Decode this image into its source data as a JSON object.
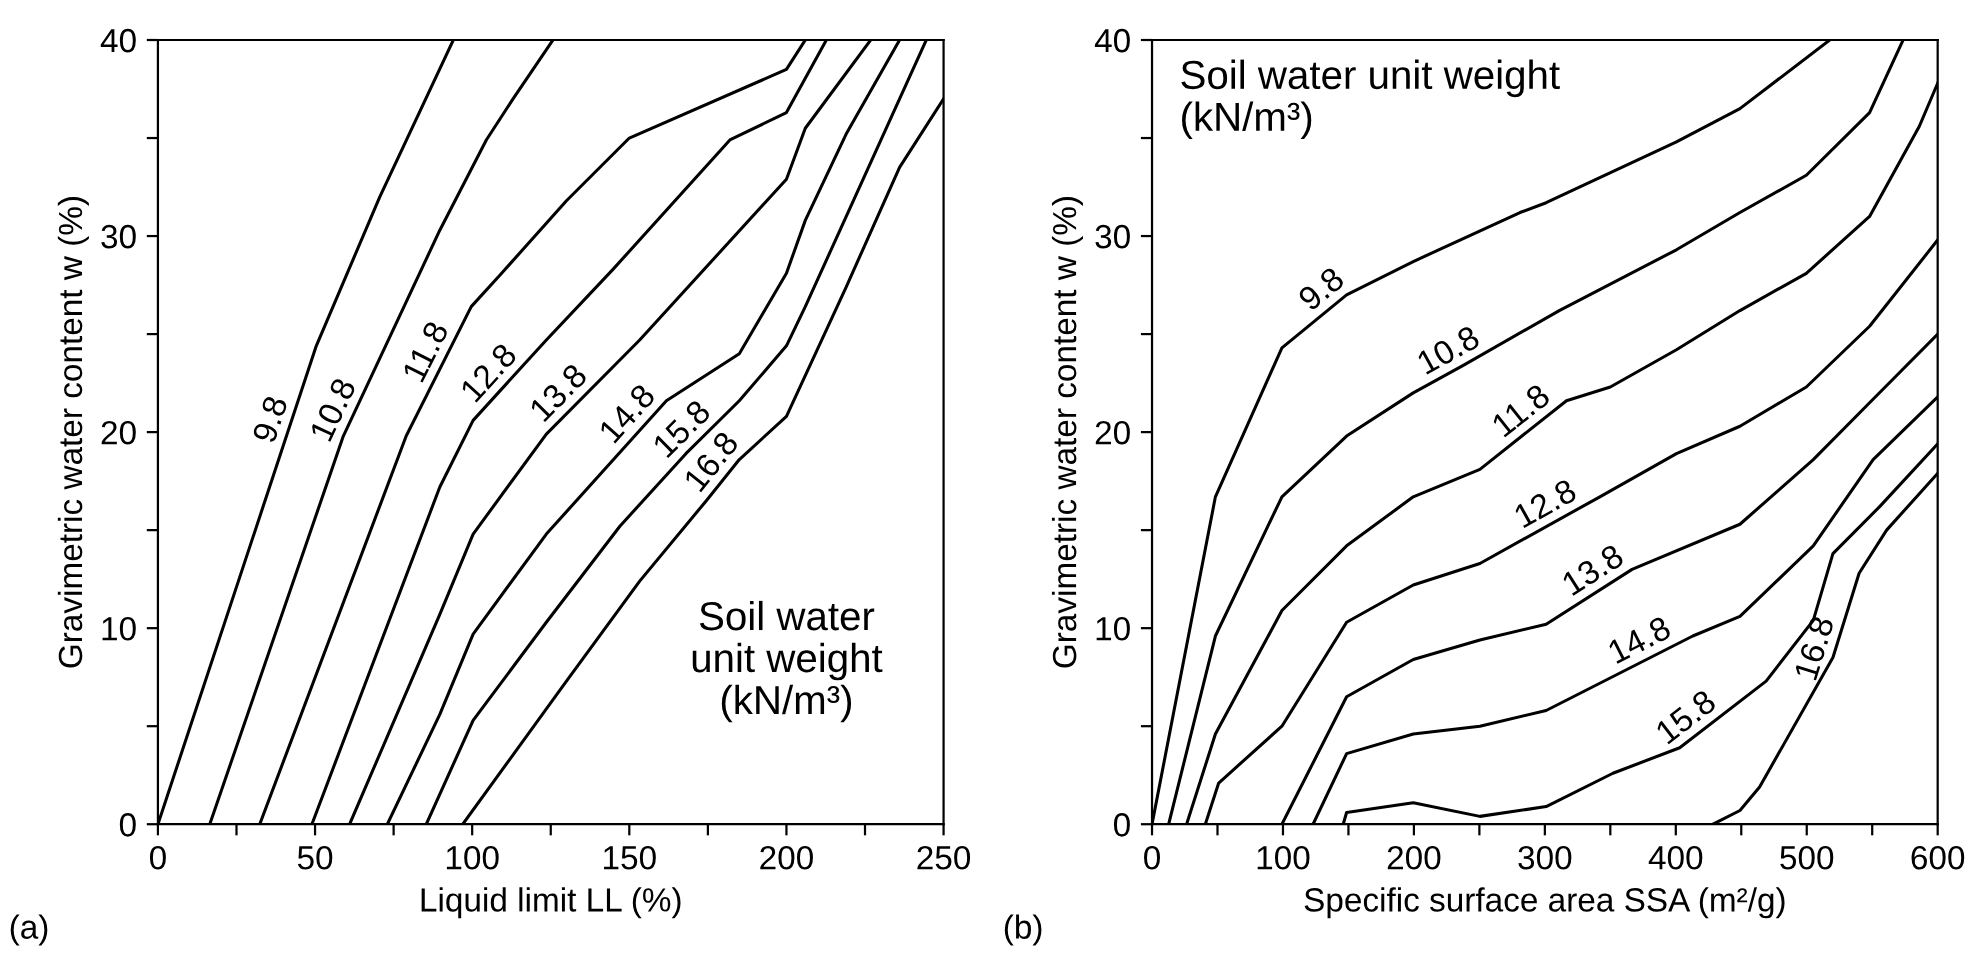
{
  "chart_data": [
    {
      "type": "line",
      "xlabel": "Liquid limit LL (%)",
      "ylabel": "Gravimetric water content w (%)",
      "xlim": [
        0,
        250
      ],
      "ylim": [
        0,
        40
      ],
      "xticks": [
        0,
        {
          "value": 25,
          "label": null
        },
        50,
        {
          "value": 75,
          "label": null
        },
        100,
        {
          "value": 125,
          "label": null
        },
        150,
        {
          "value": 175,
          "label": null
        },
        200,
        {
          "value": 225,
          "label": null
        },
        250
      ],
      "yticks": [
        0,
        {
          "value": 5,
          "label": null
        },
        10,
        {
          "value": 15,
          "label": null
        },
        20,
        {
          "value": 25,
          "label": null
        },
        30,
        {
          "value": 35,
          "label": null
        },
        40
      ],
      "grid": false,
      "legend": false,
      "annotations": [
        "(a)",
        "Soil water\nunit weight\n(kN/m³)"
      ],
      "series": [
        {
          "name": "9.8",
          "color": "#000000",
          "x": [
            0,
            50.4,
            70.6,
            94
          ],
          "values": [
            0,
            24.4,
            32,
            40
          ]
        },
        {
          "name": "10.8",
          "color": "#000000",
          "x": [
            16.5,
            59,
            89.7,
            104.5,
            113,
            125.7
          ],
          "values": [
            0,
            19.8,
            30.3,
            34.9,
            37,
            40
          ]
        },
        {
          "name": "11.8",
          "color": "#000000",
          "x": [
            32.4,
            79,
            99.7,
            108.8,
            130,
            150,
            200,
            206
          ],
          "values": [
            0,
            19.8,
            26.4,
            28,
            31.8,
            35,
            38.5,
            40
          ]
        },
        {
          "name": "12.8",
          "color": "#000000",
          "x": [
            49,
            89.7,
            100.3,
            123.6,
            144.8,
            182,
            200,
            212.7
          ],
          "values": [
            0,
            17.2,
            20.6,
            24.7,
            28.3,
            34.9,
            36.3,
            40
          ]
        },
        {
          "name": "13.8",
          "color": "#000000",
          "x": [
            61,
            89.7,
            100.3,
            123.6,
            153.3,
            200,
            206,
            226.8
          ],
          "values": [
            0,
            10.7,
            14.8,
            19.9,
            24.7,
            32.9,
            35.5,
            40
          ]
        },
        {
          "name": "14.8",
          "color": "#000000",
          "x": [
            73,
            89.7,
            100.3,
            123.6,
            161.8,
            185,
            200,
            206,
            219,
            236
          ],
          "values": [
            0,
            5.6,
            9.7,
            14.8,
            21.6,
            24,
            28.1,
            30.8,
            35.2,
            40
          ]
        },
        {
          "name": "15.8",
          "color": "#000000",
          "x": [
            85.4,
            100.3,
            123.6,
            147,
            168,
            185,
            200,
            206,
            244.5
          ],
          "values": [
            0,
            5.3,
            10.3,
            15.2,
            18.9,
            21.6,
            24.4,
            26.4,
            40
          ]
        },
        {
          "name": "16.8",
          "color": "#000000",
          "x": [
            97,
            130,
            153.3,
            174.5,
            185,
            200,
            219,
            236,
            250
          ],
          "values": [
            0,
            7.3,
            12.4,
            16.5,
            18.6,
            20.8,
            27.4,
            33.5,
            37
          ]
        }
      ]
    },
    {
      "type": "line",
      "xlabel": "Specific surface area SSA (m²/g)",
      "ylabel": "Gravimetric water content w (%)",
      "xlim": [
        0,
        600
      ],
      "ylim": [
        0,
        40
      ],
      "xticks": [
        0,
        {
          "value": 50,
          "label": null
        },
        100,
        {
          "value": 150,
          "label": null
        },
        200,
        {
          "value": 250,
          "label": null
        },
        300,
        {
          "value": 350,
          "label": null
        },
        400,
        {
          "value": 450,
          "label": null
        },
        500,
        {
          "value": 550,
          "label": null
        },
        600
      ],
      "yticks": [
        0,
        {
          "value": 5,
          "label": null
        },
        10,
        {
          "value": 15,
          "label": null
        },
        20,
        {
          "value": 25,
          "label": null
        },
        30,
        {
          "value": 35,
          "label": null
        },
        40
      ],
      "grid": false,
      "legend": false,
      "annotations": [
        "(b)",
        "Soil water unit weight\n(kN/m³)"
      ],
      "series": [
        {
          "name": "9.8",
          "color": "#000000",
          "x": [
            0,
            48.4,
            99.2,
            148.6,
            199.5,
            281,
            301,
            400.5,
            449,
            517.6
          ],
          "values": [
            0,
            16.7,
            24.3,
            27,
            28.7,
            31.2,
            31.7,
            34.8,
            36.5,
            40
          ]
        },
        {
          "name": "10.8",
          "color": "#000000",
          "x": [
            12.7,
            48.4,
            99.2,
            148.6,
            199.5,
            237.7,
            311,
            400.5,
            449,
            499.7,
            548,
            573.6
          ],
          "values": [
            0,
            9.6,
            16.7,
            19.8,
            22,
            23.4,
            26.2,
            29.3,
            31.2,
            33.1,
            36.3,
            40
          ]
        },
        {
          "name": "11.8",
          "color": "#000000",
          "x": [
            26.4,
            48.4,
            99.2,
            148.6,
            199.5,
            250.4,
            316.5,
            350,
            400.5,
            449,
            499.7,
            548,
            586,
            600
          ],
          "values": [
            0,
            4.6,
            10.9,
            14.2,
            16.7,
            18.1,
            21.6,
            22.3,
            24.2,
            26.2,
            28.1,
            31,
            35.6,
            37.8
          ]
        },
        {
          "name": "12.8",
          "color": "#000000",
          "x": [
            40.7,
            50.9,
            99.2,
            148.6,
            199.5,
            250.4,
            342,
            400.5,
            449,
            499.7,
            548,
            600
          ],
          "values": [
            0,
            2.1,
            5,
            10.3,
            12.2,
            13.3,
            16.7,
            18.9,
            20.3,
            22.3,
            25.4,
            29.8
          ]
        },
        {
          "name": "13.8",
          "color": "#000000",
          "x": [
            99.2,
            148.6,
            199.5,
            250.4,
            301,
            366.6,
            449,
            505,
            548,
            600
          ],
          "values": [
            0,
            6.5,
            8.4,
            9.4,
            10.2,
            13,
            15.3,
            18.6,
            21.5,
            25
          ]
        },
        {
          "name": "14.8",
          "color": "#000000",
          "x": [
            123,
            148.6,
            199.5,
            250.4,
            301,
            413,
            449,
            505,
            550.7,
            600
          ],
          "values": [
            0,
            3.6,
            4.6,
            5,
            5.8,
            9.6,
            10.6,
            14.2,
            18.6,
            21.8
          ]
        },
        {
          "name": "15.8",
          "color": "#000000",
          "x": [
            146,
            148.6,
            199.5,
            250.4,
            301,
            352,
            403,
            469,
            505,
            520,
            555.7,
            600
          ],
          "values": [
            0,
            0.6,
            1.1,
            0.4,
            0.9,
            2.6,
            3.9,
            7.3,
            10.4,
            13.8,
            16.2,
            19.4
          ]
        },
        {
          "name": "16.8",
          "color": "#000000",
          "x": [
            428.4,
            449,
            464,
            520,
            540,
            561,
            600
          ],
          "values": [
            0,
            0.7,
            1.9,
            8.5,
            12.8,
            15,
            17.9
          ]
        }
      ]
    }
  ]
}
